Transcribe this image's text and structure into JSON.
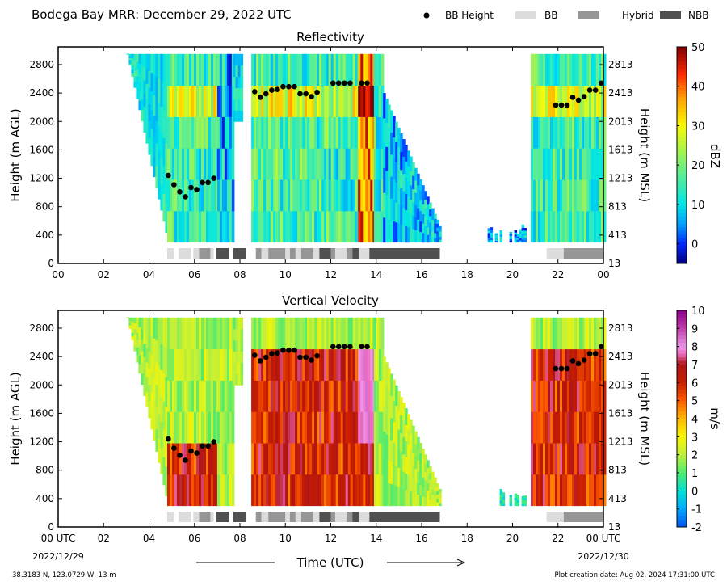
{
  "header": {
    "title": "Bodega Bay MRR:  December 29, 2022 UTC",
    "legend": [
      {
        "label": "BB Height",
        "kind": "dot",
        "color": "#000000"
      },
      {
        "label": "BB",
        "kind": "box",
        "color": "#dcdcdc"
      },
      {
        "label": "Hybrid",
        "kind": "box",
        "color": "#969696"
      },
      {
        "label": "NBB",
        "kind": "box",
        "color": "#505050"
      }
    ]
  },
  "footer": {
    "location": "38.3183 N, 123.0729 W, 13 m",
    "creation": "Plot creation date: Aug 02, 2024 17:31:00 UTC",
    "xlabel": "Time (UTC)",
    "start_date": "2022/12/29",
    "end_date": "2022/12/30"
  },
  "chart_data": [
    {
      "type": "heatmap",
      "title": "Reflectivity",
      "ylabel": "Height (m AGL)",
      "ylabel_right": "Height (m MSL)",
      "colorbar_label": "dBZ",
      "x_ticks": [
        "00",
        "02",
        "04",
        "06",
        "08",
        "10",
        "12",
        "14",
        "16",
        "18",
        "20",
        "22",
        "00"
      ],
      "xlim_hours": [
        0,
        24
      ],
      "y_ticks": [
        0,
        400,
        800,
        1200,
        1600,
        2000,
        2400,
        2800
      ],
      "y_ticks_right": [
        "13",
        "413",
        "813",
        "1213",
        "1613",
        "2013",
        "2413",
        "2813"
      ],
      "ylim": [
        0,
        3050
      ],
      "colorbar_ticks": [
        0,
        10,
        20,
        30,
        40,
        50
      ],
      "colorbar_range": [
        -5,
        50
      ]
    },
    {
      "type": "heatmap",
      "title": "Vertical Velocity",
      "ylabel": "Height (m AGL)",
      "ylabel_right": "Height (m MSL)",
      "colorbar_label": "m/s",
      "x_ticks": [
        "00 UTC",
        "02",
        "04",
        "06",
        "08",
        "10",
        "12",
        "14",
        "16",
        "18",
        "20",
        "22",
        "00 UTC"
      ],
      "xlim_hours": [
        0,
        24
      ],
      "y_ticks": [
        0,
        400,
        800,
        1200,
        1600,
        2000,
        2400,
        2800
      ],
      "y_ticks_right": [
        "13",
        "413",
        "813",
        "1213",
        "1613",
        "2013",
        "2413",
        "2813"
      ],
      "ylim": [
        0,
        3050
      ],
      "colorbar_ticks": [
        -2,
        -1,
        0,
        1,
        2,
        3,
        4,
        5,
        6,
        7,
        8,
        9,
        10
      ],
      "colorbar_range": [
        -2,
        10
      ]
    }
  ],
  "bb_height": [
    {
      "t": 4.85,
      "h": 1240
    },
    {
      "t": 5.1,
      "h": 1110
    },
    {
      "t": 5.35,
      "h": 1010
    },
    {
      "t": 5.6,
      "h": 940
    },
    {
      "t": 5.85,
      "h": 1070
    },
    {
      "t": 6.1,
      "h": 1040
    },
    {
      "t": 6.35,
      "h": 1140
    },
    {
      "t": 6.6,
      "h": 1140
    },
    {
      "t": 6.85,
      "h": 1200
    },
    {
      "t": 8.65,
      "h": 2420
    },
    {
      "t": 8.9,
      "h": 2340
    },
    {
      "t": 9.15,
      "h": 2390
    },
    {
      "t": 9.4,
      "h": 2440
    },
    {
      "t": 9.65,
      "h": 2450
    },
    {
      "t": 9.9,
      "h": 2490
    },
    {
      "t": 10.15,
      "h": 2490
    },
    {
      "t": 10.4,
      "h": 2490
    },
    {
      "t": 10.65,
      "h": 2390
    },
    {
      "t": 10.9,
      "h": 2390
    },
    {
      "t": 11.15,
      "h": 2350
    },
    {
      "t": 11.4,
      "h": 2410
    },
    {
      "t": 12.1,
      "h": 2540
    },
    {
      "t": 12.35,
      "h": 2540
    },
    {
      "t": 12.6,
      "h": 2540
    },
    {
      "t": 12.85,
      "h": 2540
    },
    {
      "t": 13.35,
      "h": 2540
    },
    {
      "t": 13.6,
      "h": 2540
    },
    {
      "t": 21.9,
      "h": 2230
    },
    {
      "t": 22.15,
      "h": 2230
    },
    {
      "t": 22.4,
      "h": 2230
    },
    {
      "t": 22.65,
      "h": 2340
    },
    {
      "t": 22.9,
      "h": 2300
    },
    {
      "t": 23.15,
      "h": 2350
    },
    {
      "t": 23.4,
      "h": 2440
    },
    {
      "t": 23.65,
      "h": 2440
    },
    {
      "t": 23.9,
      "h": 2540
    }
  ],
  "bb_type_bar": [
    {
      "t0": 4.8,
      "t1": 5.1,
      "type": "BB"
    },
    {
      "t0": 5.3,
      "t1": 5.85,
      "type": "BB"
    },
    {
      "t0": 5.95,
      "t1": 6.2,
      "type": "BB"
    },
    {
      "t0": 6.2,
      "t1": 6.7,
      "type": "Hybrid"
    },
    {
      "t0": 6.7,
      "t1": 6.85,
      "type": "BB"
    },
    {
      "t0": 6.95,
      "t1": 7.5,
      "type": "NBB"
    },
    {
      "t0": 7.7,
      "t1": 8.25,
      "type": "NBB"
    },
    {
      "t0": 8.7,
      "t1": 8.95,
      "type": "Hybrid"
    },
    {
      "t0": 8.95,
      "t1": 9.25,
      "type": "BB"
    },
    {
      "t0": 9.25,
      "t1": 10.0,
      "type": "Hybrid"
    },
    {
      "t0": 10.0,
      "t1": 10.2,
      "type": "BB"
    },
    {
      "t0": 10.2,
      "t1": 10.45,
      "type": "Hybrid"
    },
    {
      "t0": 10.45,
      "t1": 10.7,
      "type": "BB"
    },
    {
      "t0": 10.7,
      "t1": 11.2,
      "type": "Hybrid"
    },
    {
      "t0": 11.2,
      "t1": 11.5,
      "type": "BB"
    },
    {
      "t0": 11.5,
      "t1": 12.0,
      "type": "NBB"
    },
    {
      "t0": 12.0,
      "t1": 12.2,
      "type": "Hybrid"
    },
    {
      "t0": 12.2,
      "t1": 12.7,
      "type": "BB"
    },
    {
      "t0": 12.7,
      "t1": 12.95,
      "type": "Hybrid"
    },
    {
      "t0": 12.95,
      "t1": 13.25,
      "type": "NBB"
    },
    {
      "t0": 13.25,
      "t1": 13.7,
      "type": "BB"
    },
    {
      "t0": 13.7,
      "t1": 16.8,
      "type": "NBB"
    },
    {
      "t0": 21.5,
      "t1": 22.25,
      "type": "BB"
    },
    {
      "t0": 22.25,
      "t1": 24.0,
      "type": "Hybrid"
    }
  ]
}
